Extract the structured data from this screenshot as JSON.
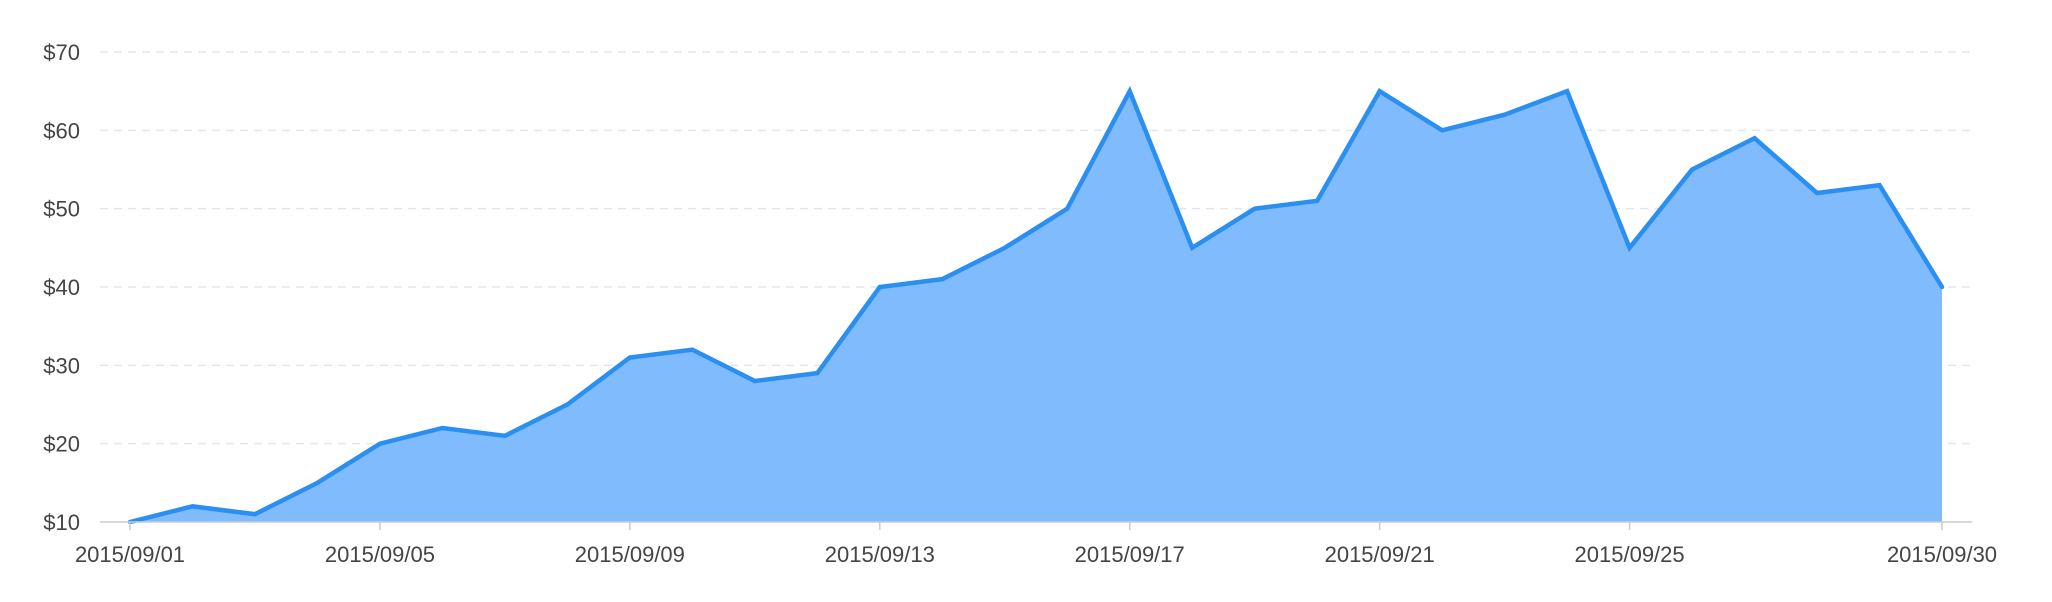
{
  "chart_data": {
    "type": "area",
    "title": "",
    "xlabel": "",
    "ylabel": "",
    "x": [
      "2015/09/01",
      "2015/09/02",
      "2015/09/03",
      "2015/09/04",
      "2015/09/05",
      "2015/09/06",
      "2015/09/07",
      "2015/09/08",
      "2015/09/09",
      "2015/09/10",
      "2015/09/11",
      "2015/09/12",
      "2015/09/13",
      "2015/09/14",
      "2015/09/15",
      "2015/09/16",
      "2015/09/17",
      "2015/09/18",
      "2015/09/19",
      "2015/09/20",
      "2015/09/21",
      "2015/09/22",
      "2015/09/23",
      "2015/09/24",
      "2015/09/25",
      "2015/09/26",
      "2015/09/27",
      "2015/09/28",
      "2015/09/29",
      "2015/09/30"
    ],
    "series": [
      {
        "values": [
          10,
          12,
          11,
          15,
          20,
          22,
          21,
          25,
          31,
          32,
          28,
          29,
          40,
          41,
          45,
          50,
          65,
          45,
          50,
          51,
          65,
          60,
          62,
          65,
          45,
          55,
          59,
          52,
          53,
          40
        ]
      }
    ],
    "ylim": [
      10,
      70
    ],
    "yticks": [
      10,
      20,
      30,
      40,
      50,
      60,
      70
    ],
    "ytick_labels": [
      "$10",
      "$20",
      "$30",
      "$40",
      "$50",
      "$60",
      "$70"
    ],
    "xtick_labels": [
      "2015/09/01",
      "2015/09/05",
      "2015/09/09",
      "2015/09/13",
      "2015/09/17",
      "2015/09/21",
      "2015/09/25",
      "2015/09/30"
    ],
    "grid": "horizontal dashed",
    "legend": "none",
    "colors": {
      "line": "#2a8ff0",
      "fill": "#7fbbfd"
    }
  }
}
